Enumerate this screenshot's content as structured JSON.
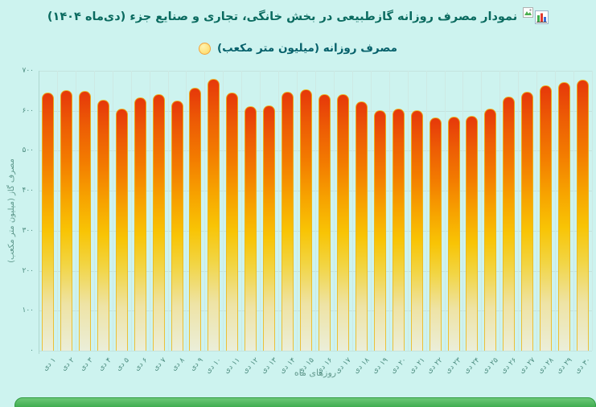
{
  "header": {
    "title": "نمودار مصرف روزانه گازطبیعی در بخش خانگی، تجاری و صنایع جزء (دی‌ماه ۱۴۰۴)",
    "icons": [
      "bar-chart-icon",
      "broken-image-icon"
    ]
  },
  "legend": {
    "label": "مصرف روزانه (میلیون متر مکعب)",
    "marker_fill": "#ffd75e",
    "marker_border": "#f2a33c"
  },
  "chart_data": {
    "type": "bar",
    "title": "نمودار مصرف روزانه گازطبیعی در بخش خانگی، تجاری و صنایع جزء (دی‌ماه ۱۴۰۴)",
    "legend_entries": [
      "مصرف روزانه (میلیون متر مکعب)"
    ],
    "legend_position": "top",
    "xlabel": "روزهای ماه",
    "ylabel": "مصرف گاز (میلیون متر مکعب)",
    "ylim": [
      0,
      700
    ],
    "yticks": [
      700,
      600,
      500,
      400,
      300,
      200,
      100,
      0
    ],
    "ytick_labels": [
      "۷۰۰",
      "۶۰۰",
      "۵۰۰",
      "۴۰۰",
      "۳۰۰",
      "۲۰۰",
      "۱۰۰",
      "۰"
    ],
    "grid": true,
    "categories": [
      "۱ دی",
      "۲ دی",
      "۳ دی",
      "۴ دی",
      "۵ دی",
      "۶ دی",
      "۷ دی",
      "۸ دی",
      "۹ دی",
      "۱۰ دی",
      "۱۱ دی",
      "۱۲ دی",
      "۱۳ دی",
      "۱۴ دی",
      "۱۵ دی",
      "۱۶ دی",
      "۱۷ دی",
      "۱۸ دی",
      "۱۹ دی",
      "۲۰ دی",
      "۲۱ دی",
      "۲۲ دی",
      "۲۳ دی",
      "۲۴ دی",
      "۲۵ دی",
      "۲۶ دی",
      "۲۷ دی",
      "۲۸ دی",
      "۲۹ دی",
      "۳۰ دی"
    ],
    "values": [
      646,
      651,
      649,
      627,
      606,
      633,
      641,
      625,
      657,
      679,
      646,
      611,
      613,
      648,
      654,
      641,
      642,
      623,
      601,
      605,
      601,
      583,
      585,
      587,
      606,
      636,
      648,
      663,
      672,
      678
    ],
    "bar_color_top": "#e6380a",
    "bar_color_mid": "#f8c405",
    "bar_color_bottom": "#ebeed9",
    "bar_border": "#ebb91e"
  },
  "colors": {
    "background": "#cdf3ef",
    "title_text": "#0a6a5f",
    "legend_text": "#06616b",
    "tick_text": "#4e8d80",
    "gridline": "#c3e3de",
    "green_strip": "#3aa94b"
  }
}
